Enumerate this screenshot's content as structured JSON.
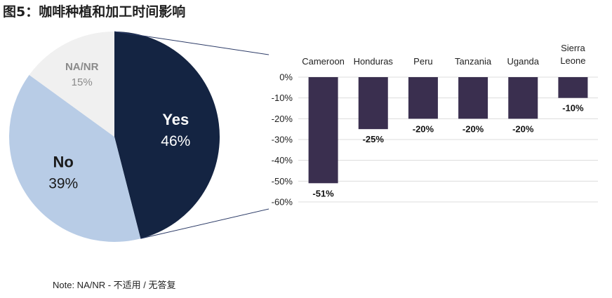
{
  "figure": {
    "title": "图5：咖啡种植和加工时间影响",
    "note": "Note: NA/NR - 不适用 / 无答复"
  },
  "chart_data": [
    {
      "type": "pie",
      "slices": [
        {
          "name": "Yes",
          "value": 46,
          "label": "46%",
          "color": "#142442",
          "text_color": "#ffffff"
        },
        {
          "name": "No",
          "value": 39,
          "label": "39%",
          "color": "#b8cce6",
          "text_color": "#1a1a1a"
        },
        {
          "name": "NA/NR",
          "value": 15,
          "label": "15%",
          "color": "#f0f0f0",
          "text_color": "#8a8a8a"
        }
      ]
    },
    {
      "type": "bar",
      "categories": [
        "Cameroon",
        "Honduras",
        "Peru",
        "Tanzania",
        "Uganda",
        "Sierra Leone"
      ],
      "values": [
        -51,
        -25,
        -20,
        -20,
        -20,
        -10
      ],
      "data_labels": [
        "-51%",
        "-25%",
        "-20%",
        "-20%",
        "-20%",
        "-10%"
      ],
      "ylim": [
        -60,
        0
      ],
      "yticks": [
        "0%",
        "-10%",
        "-20%",
        "-30%",
        "-40%",
        "-50%",
        "-60%"
      ],
      "bar_color": "#3a2f4f",
      "grid": true
    }
  ]
}
